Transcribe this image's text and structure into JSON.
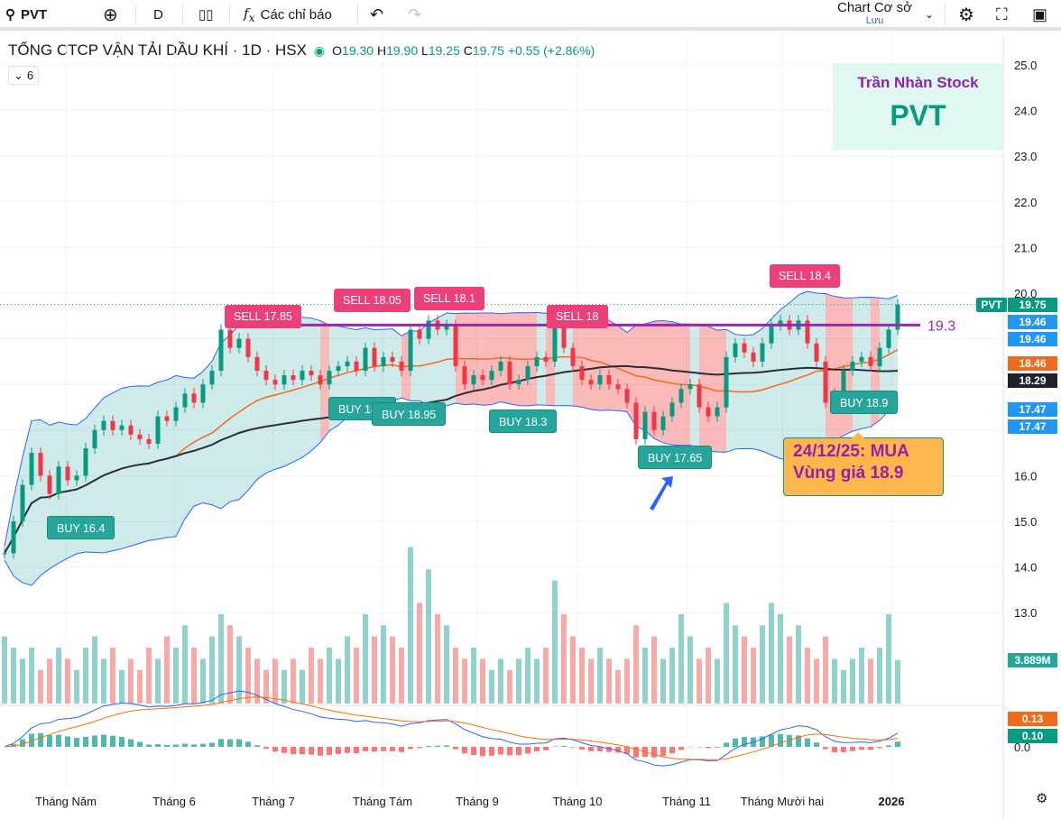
{
  "toolbar": {
    "symbol": "PVT",
    "interval": "D",
    "indicators_label": "Các chỉ báo",
    "layout_name": "Chart Cơ sở",
    "save_label": "Lưu",
    "icons": [
      "search-icon",
      "add-compare-icon",
      "candles-icon",
      "fx-icon",
      "undo-icon",
      "redo-icon",
      "chevron-down-icon",
      "gear-icon",
      "fullscreen-icon",
      "camera-icon"
    ]
  },
  "legend": {
    "title": "TỔNG CTCP VẬN TẢI DẦU KHÍ · 1D · HSX",
    "o_label": "O",
    "o": "19.30",
    "h_label": "H",
    "h": "19.90",
    "l_label": "L",
    "l": "19.25",
    "c_label": "C",
    "c": "19.75",
    "change": "+0.55 (+2.86%)",
    "collapsed_count": "6"
  },
  "watermark": {
    "author": "Trần Nhàn Stock",
    "ticker": "PVT"
  },
  "note": {
    "line1": "24/12/25: MUA",
    "line2": "Vùng giá 18.9"
  },
  "price_tags": [
    {
      "text": "19.75",
      "color": "#089981"
    },
    {
      "text": "19.46",
      "color": "#2196f3"
    },
    {
      "text": "19.46",
      "color": "#2196f3"
    },
    {
      "text": "18.46",
      "color": "#f26b1d"
    },
    {
      "text": "18.29",
      "color": "#1e222d"
    },
    {
      "text": "17.47",
      "color": "#2196f3"
    },
    {
      "text": "17.47",
      "color": "#2196f3"
    },
    {
      "text": "3.889M",
      "color": "#26a69a"
    },
    {
      "text": "0.13",
      "color": "#f26b1d"
    },
    {
      "text": "0.10",
      "color": "#089981"
    }
  ],
  "symbol_tag": "PVT",
  "level": {
    "value": 19.3,
    "label": "19.3",
    "color": "#9c27b0"
  },
  "signals": [
    {
      "label": "BUY 16.4",
      "type": "buy"
    },
    {
      "label": "SELL 17.85",
      "type": "sell"
    },
    {
      "label": "BUY 18.7",
      "type": "buy"
    },
    {
      "label": "BUY 18.95",
      "type": "buy"
    },
    {
      "label": "SELL 18.05",
      "type": "sell"
    },
    {
      "label": "SELL 18.1",
      "type": "sell"
    },
    {
      "label": "BUY 18.3",
      "type": "buy"
    },
    {
      "label": "SELL 18",
      "type": "sell"
    },
    {
      "label": "BUY 17.65",
      "type": "buy"
    },
    {
      "label": "SELL 18.4",
      "type": "sell"
    },
    {
      "label": "BUY 18.9",
      "type": "buy"
    }
  ],
  "chart_data": {
    "type": "candlestick",
    "price_axis": {
      "ticks": [
        25.0,
        24.0,
        23.0,
        22.0,
        21.0,
        20.0,
        16.0,
        15.0,
        14.0,
        13.0
      ],
      "range": [
        12.6,
        25.5
      ]
    },
    "macd_axis": {
      "ticks": [
        0.0
      ]
    },
    "x_ticks": [
      "Tháng Năm",
      "Tháng 6",
      "Tháng 7",
      "Tháng Tám",
      "Tháng 9",
      "Tháng 10",
      "Tháng 11",
      "Tháng Mười hai",
      "2026"
    ],
    "closes": [
      14.3,
      15.0,
      15.8,
      16.5,
      16.0,
      15.6,
      16.2,
      15.9,
      16.0,
      16.6,
      17.0,
      17.2,
      17.0,
      17.1,
      16.9,
      16.8,
      16.7,
      17.3,
      17.2,
      17.5,
      17.8,
      17.6,
      18.0,
      18.3,
      19.2,
      18.8,
      19.0,
      18.6,
      18.3,
      18.1,
      18.0,
      18.2,
      18.1,
      18.3,
      18.2,
      18.0,
      18.3,
      18.4,
      18.5,
      18.3,
      18.8,
      18.4,
      18.6,
      18.5,
      18.3,
      19.2,
      19.0,
      19.4,
      19.2,
      19.3,
      18.4,
      18.0,
      18.2,
      18.1,
      18.3,
      18.5,
      18.0,
      18.1,
      18.4,
      18.6,
      18.5,
      19.3,
      18.8,
      18.4,
      18.1,
      18.0,
      18.2,
      18.0,
      17.9,
      17.6,
      16.8,
      17.4,
      17.0,
      17.3,
      17.6,
      17.9,
      18.0,
      17.5,
      17.3,
      17.5,
      18.6,
      18.9,
      18.7,
      18.5,
      18.9,
      19.3,
      19.4,
      19.2,
      19.4,
      18.9,
      18.5,
      17.6,
      17.8,
      18.3,
      18.5,
      18.6,
      18.4,
      18.8,
      19.2,
      19.75
    ],
    "volume_millions": [
      6,
      5,
      4,
      5,
      3,
      4,
      5,
      4,
      3,
      5,
      6,
      4,
      5,
      3,
      4,
      3,
      5,
      4,
      6,
      5,
      7,
      5,
      4,
      6,
      8,
      7,
      6,
      5,
      4,
      3,
      4,
      3,
      4,
      3,
      5,
      4,
      5,
      4,
      6,
      5,
      8,
      6,
      7,
      6,
      5,
      14,
      9,
      12,
      8,
      7,
      5,
      4,
      5,
      4,
      3,
      4,
      3,
      4,
      5,
      4,
      5,
      11,
      8,
      6,
      5,
      4,
      5,
      4,
      3,
      4,
      7,
      5,
      6,
      4,
      5,
      8,
      6,
      4,
      5,
      4,
      9,
      7,
      6,
      5,
      7,
      9,
      8,
      6,
      7,
      5,
      4,
      6,
      4,
      3,
      4,
      5,
      4,
      5,
      8,
      3.889
    ],
    "moving_averages": [
      {
        "period": 20,
        "color": "#f26b1d"
      },
      {
        "period": 50,
        "color": "#2a2e39"
      }
    ],
    "bands_color": "#2962ff"
  }
}
